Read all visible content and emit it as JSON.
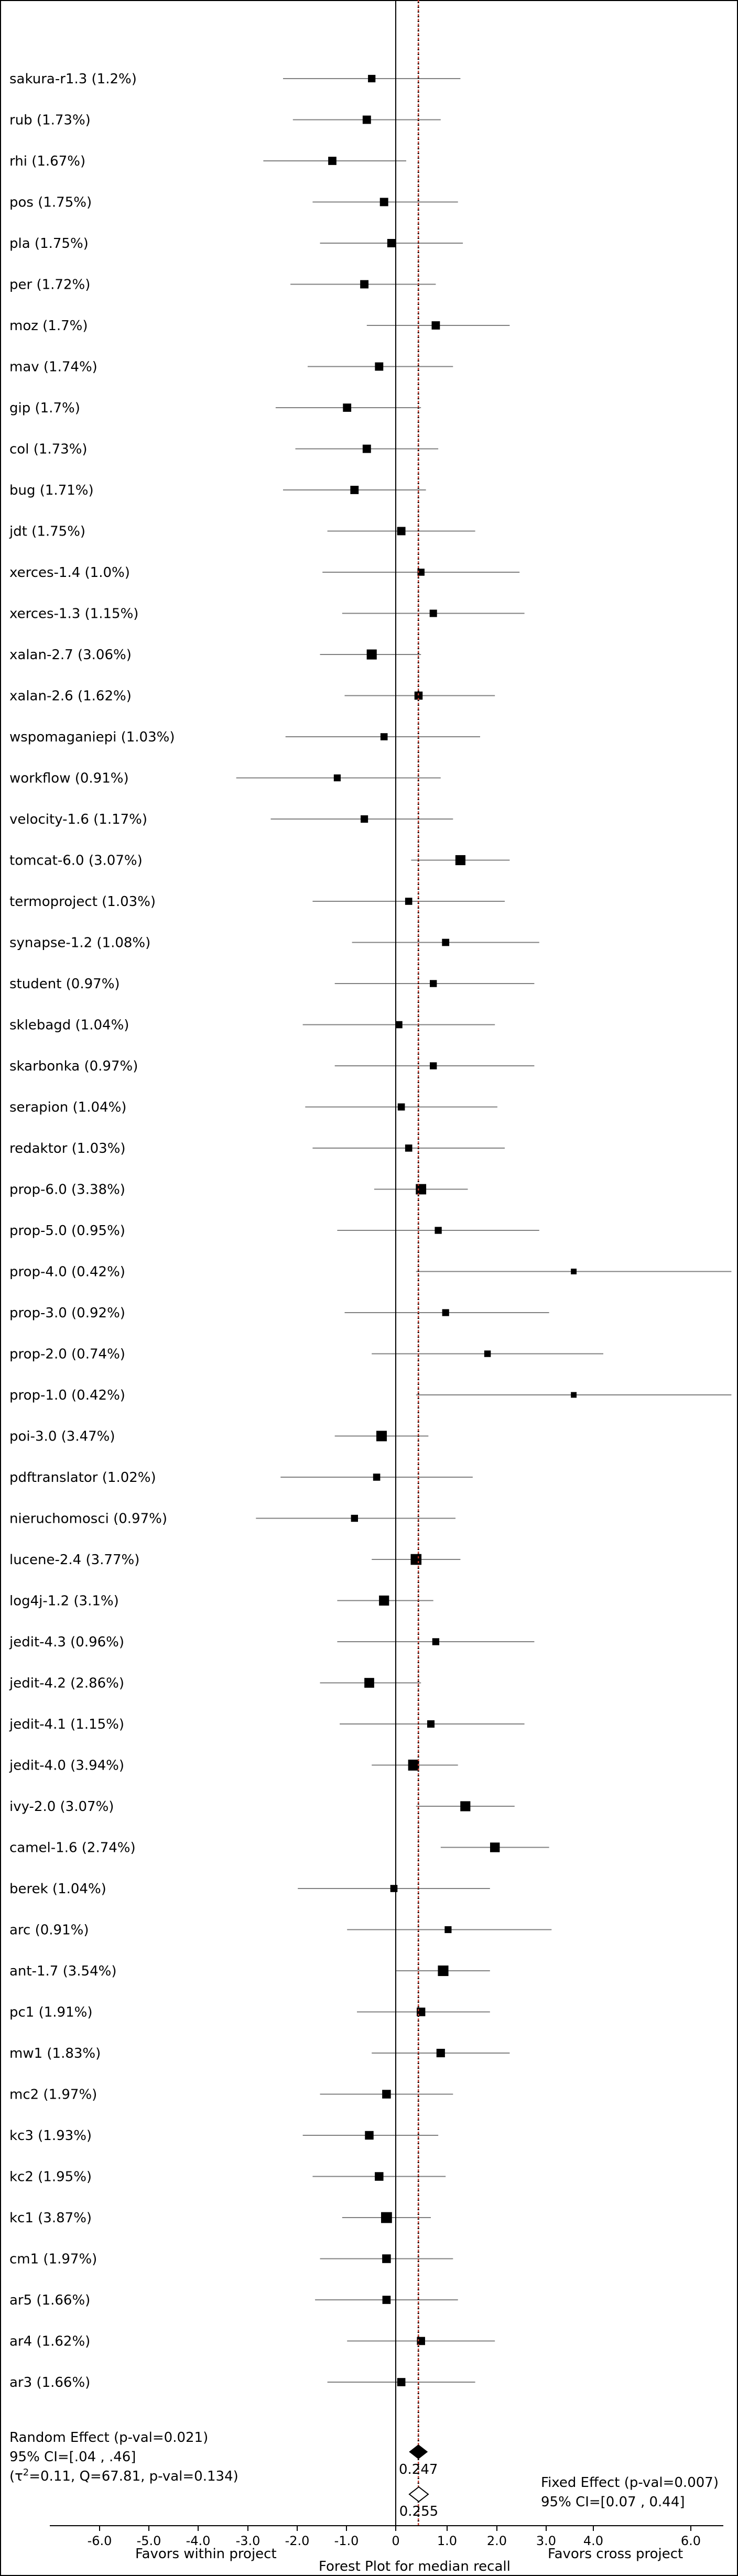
{
  "chart_data": {
    "type": "forest",
    "title": "Forest Plot for median recall",
    "xlabel_left": "Favors within project",
    "xlabel_right": "Favors cross project",
    "xticks": [
      "-6.0",
      "-5.0",
      "-4.0",
      "-3.0",
      "-2.0",
      "-1.0",
      "0",
      "1.0",
      "2.0",
      "3.0",
      "4.0",
      "6.0"
    ],
    "studies": [
      {
        "label": "sakura-r1.3 (1.2%)",
        "est": -0.7,
        "lo": -2.5,
        "hi": 1.1,
        "w": 1.2
      },
      {
        "label": "rub (1.73%)",
        "est": -0.8,
        "lo": -2.3,
        "hi": 0.7,
        "w": 1.73
      },
      {
        "label": "rhi (1.67%)",
        "est": -1.5,
        "lo": -2.9,
        "hi": 0.0,
        "w": 1.67
      },
      {
        "label": "pos (1.75%)",
        "est": -0.45,
        "lo": -1.9,
        "hi": 1.05,
        "w": 1.75
      },
      {
        "label": "pla (1.75%)",
        "est": -0.3,
        "lo": -1.75,
        "hi": 1.15,
        "w": 1.75
      },
      {
        "label": "per (1.72%)",
        "est": -0.85,
        "lo": -2.35,
        "hi": 0.6,
        "w": 1.72
      },
      {
        "label": "moz (1.7%)",
        "est": 0.6,
        "lo": -0.8,
        "hi": 2.1,
        "w": 1.7
      },
      {
        "label": "mav (1.74%)",
        "est": -0.55,
        "lo": -2.0,
        "hi": 0.95,
        "w": 1.74
      },
      {
        "label": "gip (1.7%)",
        "est": -1.2,
        "lo": -2.65,
        "hi": 0.3,
        "w": 1.7
      },
      {
        "label": "col (1.73%)",
        "est": -0.8,
        "lo": -2.25,
        "hi": 0.65,
        "w": 1.73
      },
      {
        "label": "bug (1.71%)",
        "est": -1.05,
        "lo": -2.5,
        "hi": 0.4,
        "w": 1.71
      },
      {
        "label": "jdt (1.75%)",
        "est": -0.1,
        "lo": -1.6,
        "hi": 1.4,
        "w": 1.75
      },
      {
        "label": "xerces-1.4 (1.0%)",
        "est": 0.3,
        "lo": -1.7,
        "hi": 2.3,
        "w": 1.0
      },
      {
        "label": "xerces-1.3 (1.15%)",
        "est": 0.55,
        "lo": -1.3,
        "hi": 2.4,
        "w": 1.15
      },
      {
        "label": "xalan-2.7 (3.06%)",
        "est": -0.7,
        "lo": -1.75,
        "hi": 0.3,
        "w": 3.06
      },
      {
        "label": "xalan-2.6 (1.62%)",
        "est": 0.25,
        "lo": -1.25,
        "hi": 1.8,
        "w": 1.62
      },
      {
        "label": "wspomaganiepi (1.03%)",
        "est": -0.45,
        "lo": -2.45,
        "hi": 1.5,
        "w": 1.03
      },
      {
        "label": "workflow (0.91%)",
        "est": -1.4,
        "lo": -3.45,
        "hi": 0.7,
        "w": 0.91
      },
      {
        "label": "velocity-1.6 (1.17%)",
        "est": -0.85,
        "lo": -2.75,
        "hi": 0.95,
        "w": 1.17
      },
      {
        "label": "tomcat-6.0 (3.07%)",
        "est": 1.1,
        "lo": 0.1,
        "hi": 2.1,
        "w": 3.07
      },
      {
        "label": "termoproject (1.03%)",
        "est": 0.05,
        "lo": -1.9,
        "hi": 2.0,
        "w": 1.03
      },
      {
        "label": "synapse-1.2 (1.08%)",
        "est": 0.8,
        "lo": -1.1,
        "hi": 2.7,
        "w": 1.08
      },
      {
        "label": "student (0.97%)",
        "est": 0.55,
        "lo": -1.45,
        "hi": 2.6,
        "w": 0.97
      },
      {
        "label": "sklebagd (1.04%)",
        "est": -0.15,
        "lo": -2.1,
        "hi": 1.8,
        "w": 1.04
      },
      {
        "label": "skarbonka (0.97%)",
        "est": 0.55,
        "lo": -1.45,
        "hi": 2.6,
        "w": 0.97
      },
      {
        "label": "serapion (1.04%)",
        "est": -0.1,
        "lo": -2.05,
        "hi": 1.85,
        "w": 1.04
      },
      {
        "label": "redaktor (1.03%)",
        "est": 0.05,
        "lo": -1.9,
        "hi": 2.0,
        "w": 1.03
      },
      {
        "label": "prop-6.0 (3.38%)",
        "est": 0.3,
        "lo": -0.65,
        "hi": 1.25,
        "w": 3.38
      },
      {
        "label": "prop-5.0 (0.95%)",
        "est": 0.65,
        "lo": -1.4,
        "hi": 2.7,
        "w": 0.95
      },
      {
        "label": "prop-4.0 (0.42%)",
        "est": 3.4,
        "lo": 0.2,
        "hi": 6.6,
        "w": 0.42
      },
      {
        "label": "prop-3.0 (0.92%)",
        "est": 0.8,
        "lo": -1.25,
        "hi": 2.9,
        "w": 0.92
      },
      {
        "label": "prop-2.0 (0.74%)",
        "est": 1.65,
        "lo": -0.7,
        "hi": 4.0,
        "w": 0.74
      },
      {
        "label": "prop-1.0 (0.42%)",
        "est": 3.4,
        "lo": 0.2,
        "hi": 6.6,
        "w": 0.42
      },
      {
        "label": "poi-3.0 (3.47%)",
        "est": -0.5,
        "lo": -1.45,
        "hi": 0.45,
        "w": 3.47
      },
      {
        "label": "pdftranslator (1.02%)",
        "est": -0.6,
        "lo": -2.55,
        "hi": 1.35,
        "w": 1.02
      },
      {
        "label": "nieruchomosci (0.97%)",
        "est": -1.05,
        "lo": -3.05,
        "hi": 1.0,
        "w": 0.97
      },
      {
        "label": "lucene-2.4 (3.77%)",
        "est": 0.2,
        "lo": -0.7,
        "hi": 1.1,
        "w": 3.77
      },
      {
        "label": "log4j-1.2 (3.1%)",
        "est": -0.45,
        "lo": -1.4,
        "hi": 0.55,
        "w": 3.1
      },
      {
        "label": "jedit-4.3 (0.96%)",
        "est": 0.6,
        "lo": -1.4,
        "hi": 2.6,
        "w": 0.96
      },
      {
        "label": "jedit-4.2 (2.86%)",
        "est": -0.75,
        "lo": -1.75,
        "hi": 0.3,
        "w": 2.86
      },
      {
        "label": "jedit-4.1 (1.15%)",
        "est": 0.5,
        "lo": -1.35,
        "hi": 2.4,
        "w": 1.15
      },
      {
        "label": "jedit-4.0 (3.94%)",
        "est": 0.15,
        "lo": -0.7,
        "hi": 1.05,
        "w": 3.94
      },
      {
        "label": "ivy-2.0 (3.07%)",
        "est": 1.2,
        "lo": 0.2,
        "hi": 2.2,
        "w": 3.07
      },
      {
        "label": "camel-1.6 (2.74%)",
        "est": 1.8,
        "lo": 0.7,
        "hi": 2.9,
        "w": 2.74
      },
      {
        "label": "berek (1.04%)",
        "est": -0.25,
        "lo": -2.2,
        "hi": 1.7,
        "w": 1.04
      },
      {
        "label": "arc (0.91%)",
        "est": 0.85,
        "lo": -1.2,
        "hi": 2.95,
        "w": 0.91
      },
      {
        "label": "ant-1.7 (3.54%)",
        "est": 0.75,
        "lo": -0.2,
        "hi": 1.7,
        "w": 3.54
      },
      {
        "label": "pc1 (1.91%)",
        "est": 0.3,
        "lo": -1.0,
        "hi": 1.7,
        "w": 1.91
      },
      {
        "label": "mw1 (1.83%)",
        "est": 0.7,
        "lo": -0.7,
        "hi": 2.1,
        "w": 1.83
      },
      {
        "label": "mc2 (1.97%)",
        "est": -0.4,
        "lo": -1.75,
        "hi": 0.95,
        "w": 1.97
      },
      {
        "label": "kc3 (1.93%)",
        "est": -0.75,
        "lo": -2.1,
        "hi": 0.65,
        "w": 1.93
      },
      {
        "label": "kc2 (1.95%)",
        "est": -0.55,
        "lo": -1.9,
        "hi": 0.8,
        "w": 1.95
      },
      {
        "label": "kc1 (3.87%)",
        "est": -0.4,
        "lo": -1.3,
        "hi": 0.5,
        "w": 3.87
      },
      {
        "label": "cm1 (1.97%)",
        "est": -0.4,
        "lo": -1.75,
        "hi": 0.95,
        "w": 1.97
      },
      {
        "label": "ar5 (1.66%)",
        "est": -0.4,
        "lo": -1.85,
        "hi": 1.05,
        "w": 1.66
      },
      {
        "label": "ar4 (1.62%)",
        "est": 0.3,
        "lo": -1.2,
        "hi": 1.8,
        "w": 1.62
      },
      {
        "label": "ar3 (1.66%)",
        "est": -0.1,
        "lo": -1.6,
        "hi": 1.4,
        "w": 1.66
      }
    ],
    "random_effect": {
      "line1": "Random Effect (p-val=0.021)",
      "line2": "95% CI=[.04 , .46]",
      "line3_tau": "(τ",
      "line3_sup": "2",
      "line3_rest": "=0.11, Q=67.81, p-val=0.134)",
      "estimate": 0.247,
      "estimate_label": "0.247"
    },
    "fixed_effect": {
      "line1": "Fixed Effect (p-val=0.007)",
      "line2": "95% CI=[0.07 , 0.44]",
      "estimate": 0.255,
      "estimate_label": "0.255"
    },
    "colors": {
      "reference_line": "#000000",
      "effect_line": "#c0392b",
      "marker": "#000000",
      "ci_line": "#808080"
    }
  }
}
